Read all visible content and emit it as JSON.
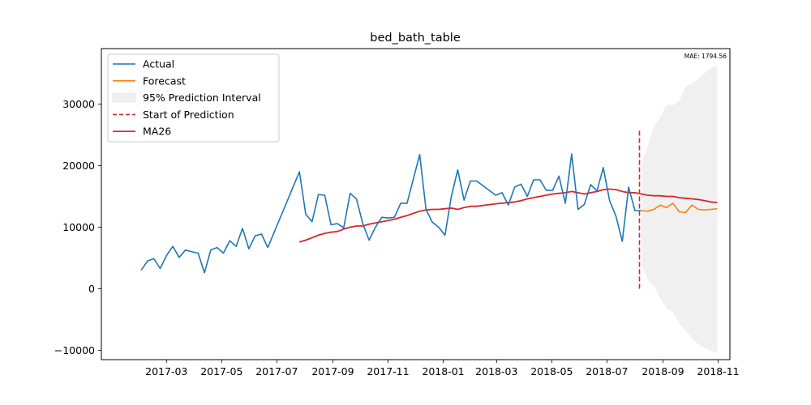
{
  "chart_data": {
    "type": "line",
    "title": "bed_bath_table",
    "annotation": "MAE: 1794.56",
    "xlabel": "",
    "ylabel": "",
    "x_range": [
      "2016-12-19",
      "2018-11-14"
    ],
    "ylim": [
      -11500,
      39000
    ],
    "x_ticks": [
      "2017-03",
      "2017-05",
      "2017-07",
      "2017-09",
      "2017-11",
      "2018-01",
      "2018-03",
      "2018-05",
      "2018-07",
      "2018-09",
      "2018-11"
    ],
    "x_tick_dates": [
      "2017-03-01",
      "2017-05-01",
      "2017-07-01",
      "2017-09-01",
      "2017-11-01",
      "2018-01-01",
      "2018-03-01",
      "2018-05-01",
      "2018-07-01",
      "2018-09-01",
      "2018-11-01"
    ],
    "y_ticks": [
      -10000,
      0,
      10000,
      20000,
      30000
    ],
    "y_tick_labels": [
      "−10000",
      "0",
      "10000",
      "20000",
      "30000"
    ],
    "grid": false,
    "legend_position": "top-left",
    "legend": [
      "Actual",
      "Forecast",
      "95% Prediction Interval",
      "Start of Prediction",
      "MA26"
    ],
    "colors": {
      "actual": "#1f77b4",
      "forecast": "#ff7f0e",
      "interval": "#d9d9d9",
      "start": "#d62728",
      "ma": "#d62728"
    },
    "series": [
      {
        "name": "Actual",
        "x": [
          "2017-02-01",
          "2017-02-08",
          "2017-02-15",
          "2017-02-22",
          "2017-03-01",
          "2017-03-08",
          "2017-03-15",
          "2017-03-22",
          "2017-03-29",
          "2017-04-05",
          "2017-04-12",
          "2017-04-19",
          "2017-04-26",
          "2017-05-03",
          "2017-05-10",
          "2017-05-17",
          "2017-05-24",
          "2017-05-31",
          "2017-06-07",
          "2017-06-14",
          "2017-06-21",
          "2017-07-26",
          "2017-08-02",
          "2017-08-09",
          "2017-08-16",
          "2017-08-23",
          "2017-08-30",
          "2017-09-06",
          "2017-09-13",
          "2017-09-20",
          "2017-09-27",
          "2017-10-04",
          "2017-10-11",
          "2017-10-18",
          "2017-10-25",
          "2017-11-01",
          "2017-11-08",
          "2017-11-15",
          "2017-11-22",
          "2017-12-06",
          "2017-12-13",
          "2017-12-20",
          "2017-12-27",
          "2018-01-03",
          "2018-01-10",
          "2018-01-17",
          "2018-01-24",
          "2018-01-31",
          "2018-02-07",
          "2018-02-28",
          "2018-03-07",
          "2018-03-14",
          "2018-03-21",
          "2018-03-28",
          "2018-04-04",
          "2018-04-11",
          "2018-04-18",
          "2018-04-25",
          "2018-05-02",
          "2018-05-09",
          "2018-05-16",
          "2018-05-23",
          "2018-05-30",
          "2018-06-06",
          "2018-06-13",
          "2018-06-20",
          "2018-06-27",
          "2018-07-04",
          "2018-07-11",
          "2018-07-18",
          "2018-07-25",
          "2018-08-01",
          "2018-08-08"
        ],
        "values": [
          3000,
          4500,
          4900,
          3300,
          5400,
          6900,
          5100,
          6300,
          6000,
          5800,
          2600,
          6300,
          6700,
          5800,
          7800,
          6900,
          9800,
          6500,
          8600,
          8900,
          6700,
          19000,
          12100,
          10900,
          15300,
          15200,
          10400,
          10600,
          9900,
          15500,
          14600,
          10600,
          7900,
          10000,
          11600,
          11500,
          11600,
          13900,
          13900,
          21800,
          12900,
          10800,
          10000,
          8700,
          15000,
          19300,
          14400,
          17500,
          17500,
          15200,
          15600,
          13600,
          16500,
          17000,
          15000,
          17700,
          17700,
          16000,
          16000,
          18300,
          13900,
          21900,
          12900,
          13700,
          16900,
          15900,
          19700,
          14300,
          11800,
          7700,
          16500,
          12700,
          12700
        ]
      },
      {
        "name": "Forecast",
        "x": [
          "2018-08-08",
          "2018-08-15",
          "2018-08-22",
          "2018-08-29",
          "2018-09-05",
          "2018-09-12",
          "2018-09-19",
          "2018-09-26",
          "2018-10-03",
          "2018-10-10",
          "2018-10-17",
          "2018-10-24",
          "2018-10-31"
        ],
        "values": [
          12700,
          12600,
          12900,
          13600,
          13200,
          13900,
          12500,
          12400,
          13600,
          12900,
          12800,
          12900,
          13000
        ]
      },
      {
        "name": "95% Prediction Interval",
        "x": [
          "2018-08-08",
          "2018-08-15",
          "2018-08-22",
          "2018-08-29",
          "2018-09-05",
          "2018-09-12",
          "2018-09-19",
          "2018-09-26",
          "2018-10-03",
          "2018-10-10",
          "2018-10-17",
          "2018-10-24",
          "2018-10-31"
        ],
        "upper": [
          20500,
          23000,
          26400,
          27800,
          29900,
          29800,
          30500,
          32900,
          33300,
          34000,
          35000,
          35900,
          36200
        ],
        "lower": [
          4000,
          1500,
          400,
          -1500,
          -3200,
          -3700,
          -5600,
          -6800,
          -8000,
          -9000,
          -9600,
          -10100,
          -10400
        ]
      },
      {
        "name": "MA26",
        "x": [
          "2017-07-26",
          "2017-08-02",
          "2017-08-09",
          "2017-08-16",
          "2017-08-23",
          "2017-08-30",
          "2017-09-06",
          "2017-09-13",
          "2017-09-20",
          "2017-09-27",
          "2017-10-04",
          "2017-10-11",
          "2017-10-18",
          "2017-10-25",
          "2017-11-01",
          "2017-11-08",
          "2017-11-15",
          "2017-11-22",
          "2017-12-06",
          "2017-12-13",
          "2017-12-20",
          "2017-12-27",
          "2018-01-03",
          "2018-01-10",
          "2018-01-17",
          "2018-01-24",
          "2018-01-31",
          "2018-02-07",
          "2018-02-28",
          "2018-03-07",
          "2018-03-14",
          "2018-03-21",
          "2018-03-28",
          "2018-04-04",
          "2018-04-11",
          "2018-04-18",
          "2018-04-25",
          "2018-05-02",
          "2018-05-09",
          "2018-05-16",
          "2018-05-23",
          "2018-05-30",
          "2018-06-06",
          "2018-06-13",
          "2018-06-20",
          "2018-06-27",
          "2018-07-04",
          "2018-07-11",
          "2018-07-18",
          "2018-07-25",
          "2018-08-01",
          "2018-08-08",
          "2018-08-15",
          "2018-08-22",
          "2018-08-29",
          "2018-09-05",
          "2018-09-12",
          "2018-09-19",
          "2018-09-26",
          "2018-10-03",
          "2018-10-10",
          "2018-10-17",
          "2018-10-24",
          "2018-10-31"
        ],
        "values": [
          7600,
          7900,
          8300,
          8700,
          9000,
          9200,
          9300,
          9700,
          10000,
          10200,
          10200,
          10500,
          10700,
          10900,
          11100,
          11300,
          11600,
          11900,
          12600,
          12800,
          12900,
          12900,
          13000,
          13100,
          12900,
          13200,
          13400,
          13400,
          13800,
          13900,
          14000,
          14100,
          14300,
          14600,
          14800,
          15000,
          15200,
          15400,
          15500,
          15600,
          15800,
          15600,
          15400,
          15600,
          15800,
          16100,
          16200,
          16100,
          15800,
          15600,
          15600,
          15400,
          15200,
          15100,
          15100,
          15000,
          15000,
          14800,
          14700,
          14600,
          14500,
          14300,
          14100,
          14000
        ]
      }
    ],
    "prediction_start": {
      "x": "2018-08-06",
      "y0": 0,
      "y1": 26000
    }
  }
}
